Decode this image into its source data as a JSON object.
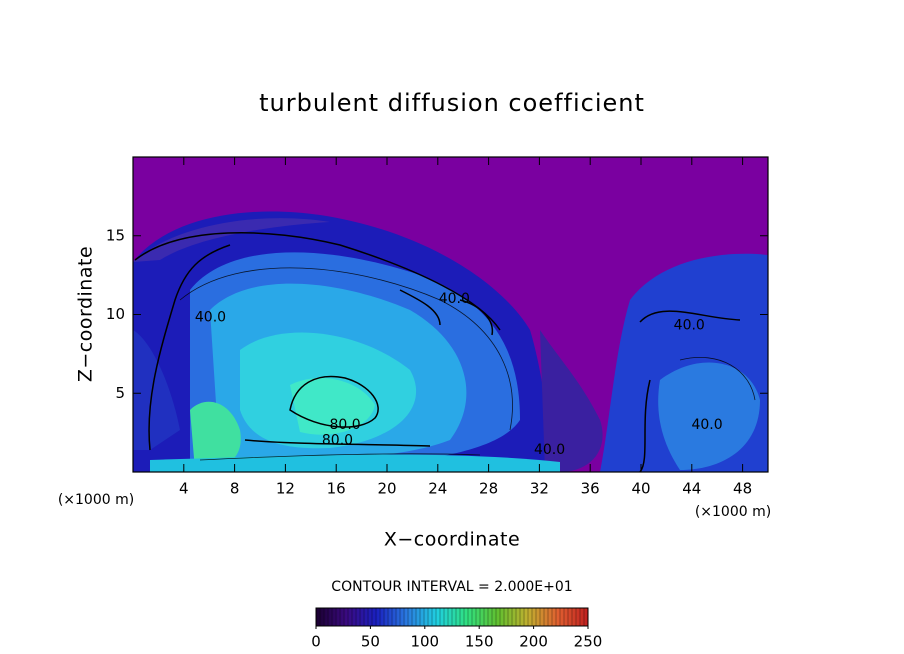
{
  "chart_data": {
    "type": "contour",
    "title": "turbulent diffusion coefficient",
    "x_label": "X−coordinate",
    "y_label": "Z−coordinate",
    "x_unit_label": "(×1000 m)",
    "x_unit_label_right": "(×1000 m)",
    "xlim": [
      0,
      50
    ],
    "ylim": [
      0,
      20
    ],
    "xticks": [
      4,
      8,
      12,
      16,
      20,
      24,
      28,
      32,
      36,
      40,
      44,
      48
    ],
    "yticks": [
      5,
      10,
      15
    ],
    "contour_interval_label": "CONTOUR INTERVAL = 2.000E+01",
    "colorbar": {
      "lim": [
        0,
        250
      ],
      "ticks": [
        0,
        50,
        100,
        150,
        200,
        250
      ],
      "colors": [
        "#1a0030",
        "#3a0a80",
        "#1a20c0",
        "#2a7ae0",
        "#20d0e0",
        "#30e080",
        "#60c030",
        "#c0b030",
        "#e06030",
        "#c02020"
      ]
    },
    "annotations": [
      {
        "text": "40.0",
        "x": 6.1,
        "y": 9.8
      },
      {
        "text": "40.0",
        "x": 25.3,
        "y": 11.0
      },
      {
        "text": "40.0",
        "x": 43.8,
        "y": 9.3
      },
      {
        "text": "80.0",
        "x": 16.7,
        "y": 3.0
      },
      {
        "text": "80.0",
        "x": 16.1,
        "y": 2.0
      },
      {
        "text": "40.0",
        "x": 32.8,
        "y": 1.4
      },
      {
        "text": "40.0",
        "x": 45.2,
        "y": 3.0
      }
    ]
  }
}
